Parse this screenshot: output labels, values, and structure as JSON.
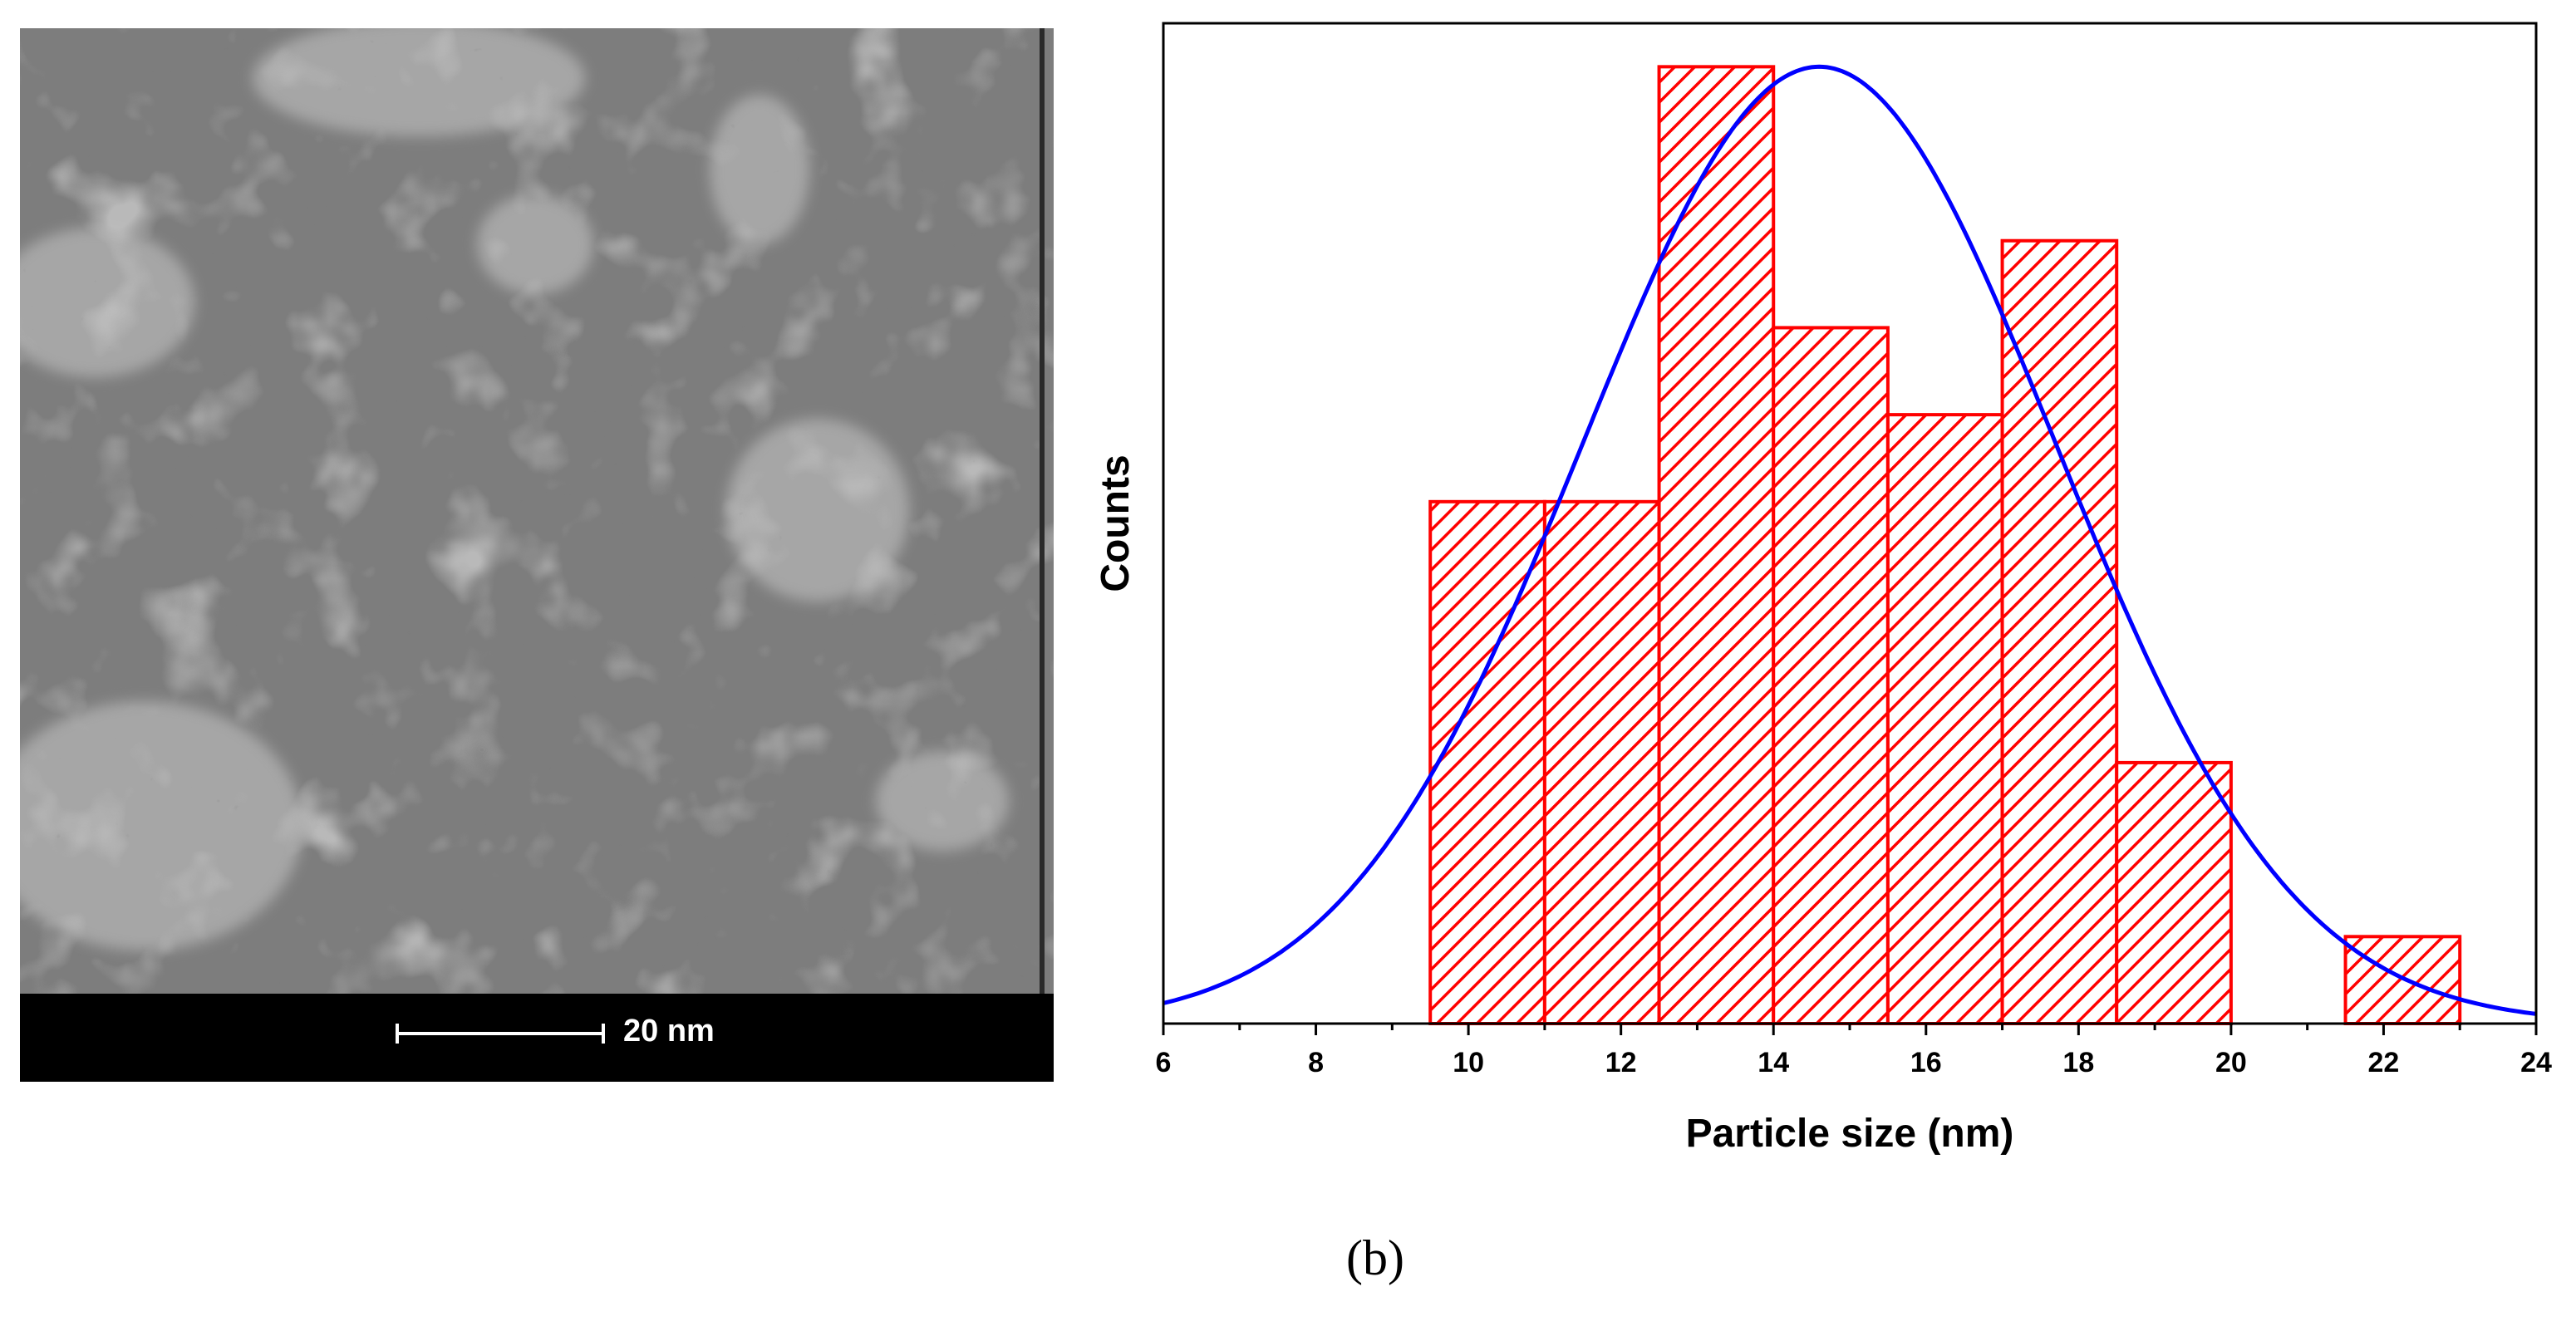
{
  "tem_image": {
    "scale_bar_label": "20 nm"
  },
  "panel_label": "(b)",
  "chart_data": {
    "type": "bar",
    "title": "",
    "xlabel": "Particle size (nm)",
    "ylabel": "Counts",
    "xlim": [
      6,
      24
    ],
    "ylim": [
      0,
      11.5
    ],
    "xticks": [
      6,
      8,
      10,
      12,
      14,
      16,
      18,
      20,
      22,
      24
    ],
    "bins": [
      {
        "from": 9.5,
        "to": 11,
        "count": 6
      },
      {
        "from": 11,
        "to": 12.5,
        "count": 6
      },
      {
        "from": 12.5,
        "to": 14,
        "count": 11
      },
      {
        "from": 14,
        "to": 15.5,
        "count": 8
      },
      {
        "from": 15.5,
        "to": 17,
        "count": 7
      },
      {
        "from": 17,
        "to": 18.5,
        "count": 9
      },
      {
        "from": 18.5,
        "to": 20,
        "count": 3
      },
      {
        "from": 21.5,
        "to": 23,
        "count": 1
      }
    ],
    "bar_style": {
      "color": "#ff0000",
      "hatch": "diagonal"
    },
    "fit_curve": {
      "type": "gaussian",
      "mean": 14.6,
      "sigma": 3.1,
      "peak": 11,
      "color": "#0000ff"
    }
  }
}
